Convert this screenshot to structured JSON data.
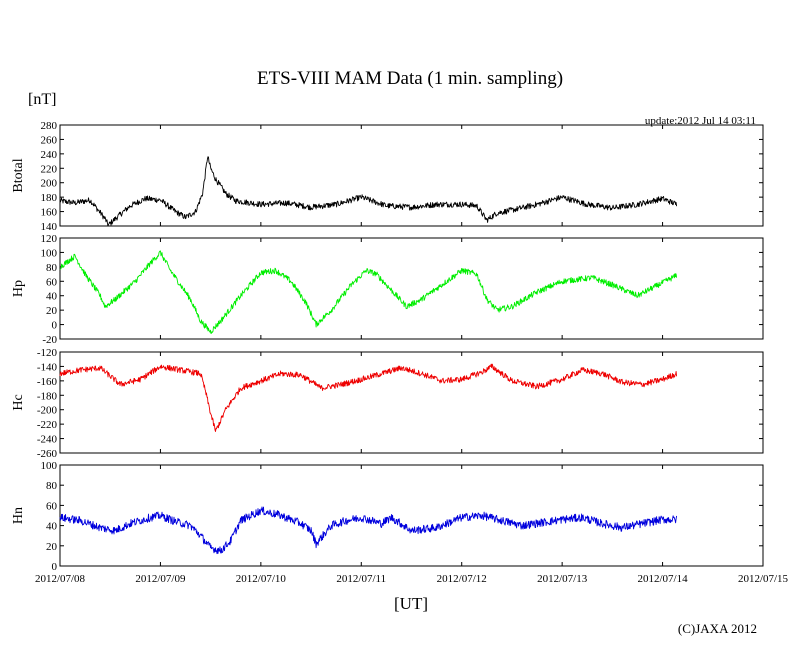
{
  "title": "ETS-VIII MAM Data (1 min. sampling)",
  "unit_label": "[nT]",
  "update_text": "update:2012 Jul 14 03:11",
  "x_axis_label": "[UT]",
  "copyright": "(C)JAXA 2012",
  "chart_data": {
    "type": "line",
    "x_ticks": [
      "2012/07/08",
      "2012/07/09",
      "2012/07/10",
      "2012/07/11",
      "2012/07/12",
      "2012/07/13",
      "2012/07/14",
      "2012/07/15"
    ],
    "xlim": [
      0,
      7
    ],
    "x_unit": "days since 2012/07/08 00:00 UT",
    "panels": [
      {
        "name": "Btotal",
        "color": "#000000",
        "ylim": [
          140,
          280
        ],
        "yticks": [
          140,
          160,
          180,
          200,
          220,
          240,
          260,
          280
        ],
        "x": [
          0,
          0.15,
          0.3,
          0.45,
          0.48,
          0.55,
          0.7,
          0.85,
          1.0,
          1.15,
          1.25,
          1.35,
          1.42,
          1.45,
          1.47,
          1.5,
          1.55,
          1.6,
          1.65,
          1.75,
          2.0,
          2.25,
          2.5,
          2.75,
          3.0,
          3.25,
          3.5,
          3.75,
          4.0,
          4.15,
          4.25,
          4.35,
          4.5,
          4.75,
          5.0,
          5.25,
          5.5,
          5.75,
          6.0,
          6.14
        ],
        "values": [
          175,
          172,
          176,
          150,
          141,
          150,
          168,
          178,
          176,
          160,
          152,
          160,
          185,
          215,
          237,
          220,
          205,
          195,
          185,
          175,
          170,
          172,
          166,
          170,
          180,
          168,
          166,
          170,
          170,
          168,
          148,
          158,
          162,
          170,
          180,
          170,
          165,
          170,
          178,
          170
        ],
        "noise": 4
      },
      {
        "name": "Hp",
        "color": "#00ee00",
        "ylim": [
          -20,
          120
        ],
        "yticks": [
          -20,
          0,
          20,
          40,
          60,
          80,
          100,
          120
        ],
        "x": [
          0,
          0.15,
          0.25,
          0.4,
          0.45,
          0.55,
          0.75,
          0.9,
          1.0,
          1.1,
          1.2,
          1.3,
          1.4,
          1.5,
          1.6,
          1.8,
          2.0,
          2.15,
          2.3,
          2.45,
          2.55,
          2.7,
          2.9,
          3.05,
          3.15,
          3.25,
          3.35,
          3.45,
          3.6,
          3.85,
          4.0,
          4.15,
          4.25,
          4.35,
          4.5,
          4.75,
          5.0,
          5.3,
          5.5,
          5.75,
          6.0,
          6.14
        ],
        "values": [
          80,
          95,
          70,
          40,
          25,
          35,
          60,
          85,
          100,
          75,
          55,
          35,
          5,
          -10,
          5,
          40,
          72,
          75,
          60,
          30,
          0,
          20,
          55,
          75,
          70,
          55,
          40,
          25,
          35,
          60,
          75,
          70,
          35,
          20,
          25,
          45,
          60,
          65,
          55,
          40,
          58,
          68
        ],
        "noise": 4
      },
      {
        "name": "Hc",
        "color": "#ee0000",
        "ylim": [
          -260,
          -120
        ],
        "yticks": [
          -260,
          -240,
          -220,
          -200,
          -180,
          -160,
          -140,
          -120
        ],
        "x": [
          0,
          0.2,
          0.4,
          0.6,
          0.8,
          1.0,
          1.2,
          1.4,
          1.45,
          1.5,
          1.55,
          1.65,
          1.8,
          2.0,
          2.2,
          2.4,
          2.6,
          2.8,
          3.0,
          3.2,
          3.4,
          3.6,
          3.8,
          4.0,
          4.2,
          4.3,
          4.5,
          4.75,
          5.0,
          5.2,
          5.4,
          5.6,
          5.8,
          6.0,
          6.14
        ],
        "values": [
          -150,
          -145,
          -142,
          -165,
          -158,
          -140,
          -145,
          -150,
          -175,
          -205,
          -230,
          -200,
          -170,
          -160,
          -150,
          -152,
          -170,
          -165,
          -158,
          -150,
          -142,
          -150,
          -160,
          -158,
          -148,
          -140,
          -160,
          -168,
          -158,
          -145,
          -150,
          -162,
          -165,
          -158,
          -150
        ],
        "noise": 4
      },
      {
        "name": "Hn",
        "color": "#0000dd",
        "ylim": [
          0,
          100
        ],
        "yticks": [
          0,
          20,
          40,
          60,
          80,
          100
        ],
        "x": [
          0,
          0.2,
          0.4,
          0.55,
          0.7,
          0.9,
          1.0,
          1.15,
          1.3,
          1.4,
          1.5,
          1.6,
          1.7,
          1.8,
          2.0,
          2.2,
          2.4,
          2.5,
          2.55,
          2.6,
          2.7,
          2.85,
          3.0,
          3.2,
          3.3,
          3.5,
          3.75,
          4.0,
          4.2,
          4.4,
          4.6,
          4.8,
          5.0,
          5.2,
          5.4,
          5.6,
          5.8,
          6.0,
          6.14
        ],
        "values": [
          48,
          45,
          38,
          35,
          42,
          48,
          50,
          44,
          40,
          30,
          18,
          15,
          25,
          45,
          55,
          50,
          42,
          35,
          22,
          28,
          40,
          45,
          48,
          42,
          48,
          35,
          38,
          48,
          50,
          45,
          40,
          43,
          46,
          48,
          42,
          38,
          42,
          46,
          46
        ],
        "noise": 4
      }
    ]
  }
}
